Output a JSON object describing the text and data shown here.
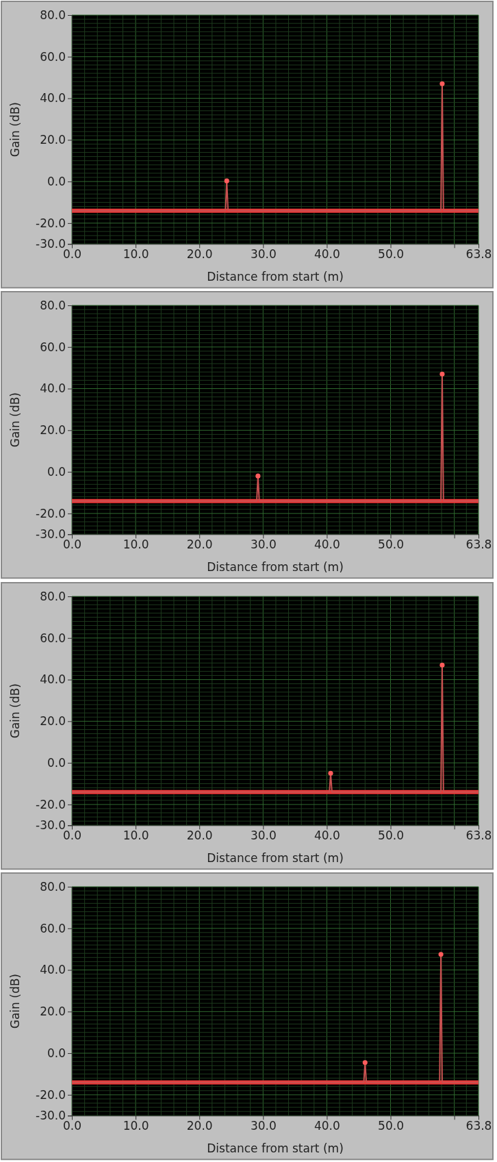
{
  "chart_data": [
    {
      "type": "line",
      "xlabel": "Distance from start (m)",
      "ylabel": "Gain (dB)",
      "xlim": [
        0,
        63.8
      ],
      "ylim": [
        -30,
        80
      ],
      "xticks": [
        {
          "value": 0,
          "label": "0.0"
        },
        {
          "value": 10,
          "label": "10.0"
        },
        {
          "value": 20,
          "label": "20.0"
        },
        {
          "value": 30,
          "label": "30.0"
        },
        {
          "value": 40,
          "label": "40.0"
        },
        {
          "value": 50,
          "label": "50.0"
        },
        {
          "value": 60,
          "label": null
        },
        {
          "value": 63.8,
          "label": "63.8"
        }
      ],
      "yticks": [
        {
          "value": -30,
          "label": "-30.0"
        },
        {
          "value": -20,
          "label": "-20.0"
        },
        {
          "value": 0,
          "label": "0.0"
        },
        {
          "value": 20,
          "label": "20.0"
        },
        {
          "value": 40,
          "label": "40.0"
        },
        {
          "value": 60,
          "label": "60.0"
        },
        {
          "value": 80,
          "label": "80.0"
        }
      ],
      "grid": true,
      "ref_lines": [
        {
          "axis": "y",
          "value": -14,
          "color": "#e83a3a"
        }
      ],
      "series": [
        {
          "type": "line",
          "color": "#c85050",
          "marker": "none",
          "x": [
            0,
            24.1,
            24.3,
            24.5,
            57.9,
            58.1,
            58.3,
            63.8
          ],
          "values": [
            -14,
            -14,
            0.3,
            -14,
            -14,
            47,
            -14,
            -14
          ]
        },
        {
          "type": "scatter",
          "color": "#ff5c5c",
          "marker": "circle",
          "x": [
            24.3,
            58.1
          ],
          "values": [
            0.3,
            47
          ]
        }
      ]
    },
    {
      "type": "line",
      "xlabel": "Distance from start (m)",
      "ylabel": "Gain (dB)",
      "xlim": [
        0,
        63.8
      ],
      "ylim": [
        -30,
        80
      ],
      "xticks": [
        {
          "value": 0,
          "label": "0.0"
        },
        {
          "value": 10,
          "label": "10.0"
        },
        {
          "value": 20,
          "label": "20.0"
        },
        {
          "value": 30,
          "label": "30.0"
        },
        {
          "value": 40,
          "label": "40.0"
        },
        {
          "value": 50,
          "label": "50.0"
        },
        {
          "value": 60,
          "label": null
        },
        {
          "value": 63.8,
          "label": "63.8"
        }
      ],
      "yticks": [
        {
          "value": -30,
          "label": "-30.0"
        },
        {
          "value": -20,
          "label": "-20.0"
        },
        {
          "value": 0,
          "label": "0.0"
        },
        {
          "value": 20,
          "label": "20.0"
        },
        {
          "value": 40,
          "label": "40.0"
        },
        {
          "value": 60,
          "label": "60.0"
        },
        {
          "value": 80,
          "label": "80.0"
        }
      ],
      "grid": true,
      "ref_lines": [
        {
          "axis": "y",
          "value": -14,
          "color": "#e83a3a"
        }
      ],
      "series": [
        {
          "type": "line",
          "color": "#c85050",
          "marker": "none",
          "x": [
            0,
            29,
            29.2,
            29.4,
            57.9,
            58.1,
            58.3,
            63.8
          ],
          "values": [
            -14,
            -14,
            -2,
            -14,
            -14,
            47,
            -14,
            -14
          ]
        },
        {
          "type": "scatter",
          "color": "#ff5c5c",
          "marker": "circle",
          "x": [
            29.2,
            58.1
          ],
          "values": [
            -2,
            47
          ]
        }
      ]
    },
    {
      "type": "line",
      "xlabel": "Distance from start (m)",
      "ylabel": "Gain (dB)",
      "xlim": [
        0,
        63.8
      ],
      "ylim": [
        -30,
        80
      ],
      "xticks": [
        {
          "value": 0,
          "label": "0.0"
        },
        {
          "value": 10,
          "label": "10.0"
        },
        {
          "value": 20,
          "label": "20.0"
        },
        {
          "value": 30,
          "label": "30.0"
        },
        {
          "value": 40,
          "label": "40.0"
        },
        {
          "value": 50,
          "label": "50.0"
        },
        {
          "value": 60,
          "label": null
        },
        {
          "value": 63.8,
          "label": "63.8"
        }
      ],
      "yticks": [
        {
          "value": -30,
          "label": "-30.0"
        },
        {
          "value": -20,
          "label": "-20.0"
        },
        {
          "value": 0,
          "label": "0.0"
        },
        {
          "value": 20,
          "label": "20.0"
        },
        {
          "value": 40,
          "label": "40.0"
        },
        {
          "value": 60,
          "label": "60.0"
        },
        {
          "value": 80,
          "label": "80.0"
        }
      ],
      "grid": true,
      "ref_lines": [
        {
          "axis": "y",
          "value": -14,
          "color": "#e83a3a"
        }
      ],
      "series": [
        {
          "type": "line",
          "color": "#c85050",
          "marker": "none",
          "x": [
            0,
            40.4,
            40.6,
            40.8,
            57.9,
            58.1,
            58.3,
            63.8
          ],
          "values": [
            -14,
            -14,
            -5,
            -14,
            -14,
            47,
            -14,
            -14
          ]
        },
        {
          "type": "scatter",
          "color": "#ff5c5c",
          "marker": "circle",
          "x": [
            40.6,
            58.1
          ],
          "values": [
            -5,
            47
          ]
        }
      ]
    },
    {
      "type": "line",
      "xlabel": "Distance from start (m)",
      "ylabel": "Gain (dB)",
      "xlim": [
        0,
        63.8
      ],
      "ylim": [
        -30,
        80
      ],
      "xticks": [
        {
          "value": 0,
          "label": "0.0"
        },
        {
          "value": 10,
          "label": "10.0"
        },
        {
          "value": 20,
          "label": "20.0"
        },
        {
          "value": 30,
          "label": "30.0"
        },
        {
          "value": 40,
          "label": "40.0"
        },
        {
          "value": 50,
          "label": "50.0"
        },
        {
          "value": 60,
          "label": null
        },
        {
          "value": 63.8,
          "label": "63.8"
        }
      ],
      "yticks": [
        {
          "value": -30,
          "label": "-30.0"
        },
        {
          "value": -20,
          "label": "-20.0"
        },
        {
          "value": 0,
          "label": "0.0"
        },
        {
          "value": 20,
          "label": "20.0"
        },
        {
          "value": 40,
          "label": "40.0"
        },
        {
          "value": 60,
          "label": "60.0"
        },
        {
          "value": 80,
          "label": "80.0"
        }
      ],
      "grid": true,
      "ref_lines": [
        {
          "axis": "y",
          "value": -14,
          "color": "#e83a3a"
        }
      ],
      "series": [
        {
          "type": "line",
          "color": "#c85050",
          "marker": "none",
          "x": [
            0,
            45.8,
            46,
            46.2,
            57.7,
            57.9,
            58.1,
            63.8
          ],
          "values": [
            -14,
            -14,
            -4.5,
            -14,
            -14,
            47.5,
            -14,
            -14
          ]
        },
        {
          "type": "scatter",
          "color": "#ff5c5c",
          "marker": "circle",
          "x": [
            46,
            57.9
          ],
          "values": [
            -4.5,
            47.5
          ]
        }
      ]
    }
  ]
}
